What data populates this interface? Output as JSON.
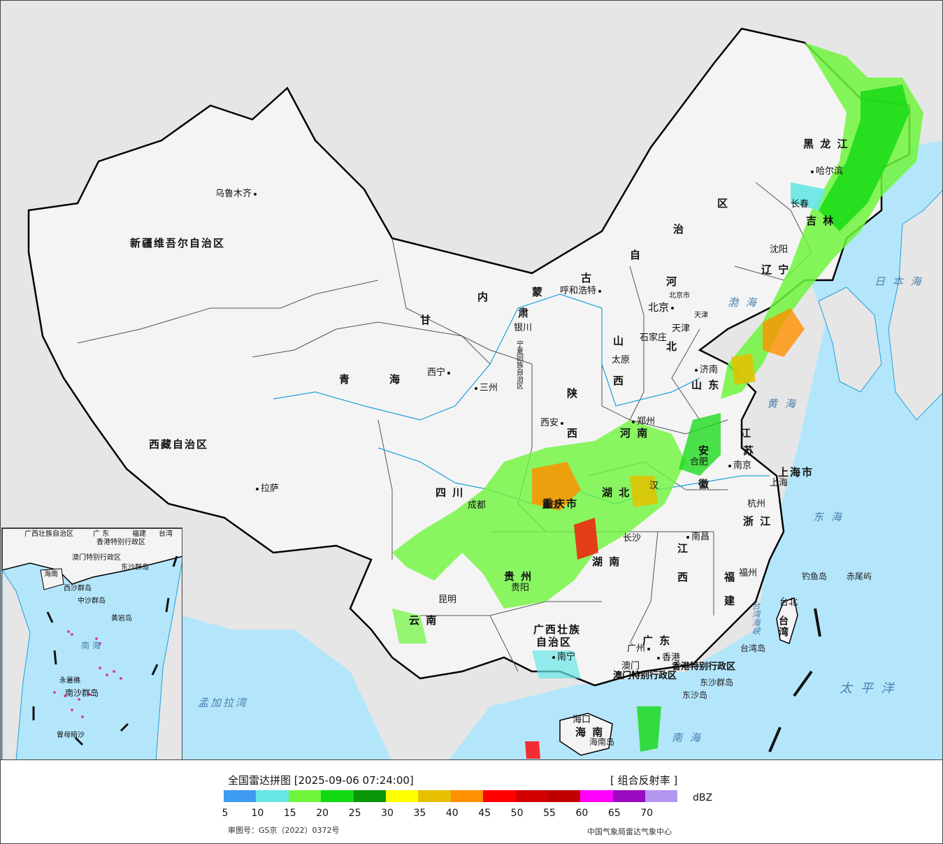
{
  "map": {
    "provinces": [
      {
        "id": "xinjiang",
        "text": "新疆维吾尔自治区"
      },
      {
        "id": "xizang",
        "text": "西藏自治区"
      },
      {
        "id": "qinghai-1",
        "text": "青"
      },
      {
        "id": "qinghai-2",
        "text": "海"
      },
      {
        "id": "gansu-1",
        "text": "甘"
      },
      {
        "id": "gansu-2",
        "text": "肃"
      },
      {
        "id": "neimenggu-1",
        "text": "内"
      },
      {
        "id": "neimenggu-2",
        "text": "蒙"
      },
      {
        "id": "neimenggu-3",
        "text": "古"
      },
      {
        "id": "neimenggu-4",
        "text": "自"
      },
      {
        "id": "neimenggu-5",
        "text": "治"
      },
      {
        "id": "neimenggu-6",
        "text": "区"
      },
      {
        "id": "heilongjiang",
        "text": "黑 龙 江"
      },
      {
        "id": "jilin",
        "text": "吉 林"
      },
      {
        "id": "liaoning",
        "text": "辽 宁"
      },
      {
        "id": "hebei-1",
        "text": "河"
      },
      {
        "id": "hebei-2",
        "text": "北"
      },
      {
        "id": "shanxi-1",
        "text": "山"
      },
      {
        "id": "shanxi-2",
        "text": "西"
      },
      {
        "id": "shaanxi-1",
        "text": "陕"
      },
      {
        "id": "shaanxi-2",
        "text": "西"
      },
      {
        "id": "shandong",
        "text": "山 东"
      },
      {
        "id": "henan",
        "text": "河 南"
      },
      {
        "id": "jiangsu-1",
        "text": "江"
      },
      {
        "id": "jiangsu-2",
        "text": "苏"
      },
      {
        "id": "anhui-1",
        "text": "安"
      },
      {
        "id": "anhui-2",
        "text": "徽"
      },
      {
        "id": "shanghai",
        "text": "上海市"
      },
      {
        "id": "zhejiang",
        "text": "浙 江"
      },
      {
        "id": "hubei",
        "text": "湖 北"
      },
      {
        "id": "sichuan",
        "text": "四 川"
      },
      {
        "id": "chongqing",
        "text": "重庆市"
      },
      {
        "id": "guizhou",
        "text": "贵 州"
      },
      {
        "id": "hunan",
        "text": "湖 南"
      },
      {
        "id": "jiangxi-1",
        "text": "江"
      },
      {
        "id": "jiangxi-2",
        "text": "西"
      },
      {
        "id": "fujian-1",
        "text": "福"
      },
      {
        "id": "fujian-2",
        "text": "建"
      },
      {
        "id": "yunnan",
        "text": "云 南"
      },
      {
        "id": "guangxi-1",
        "text": "广西壮族"
      },
      {
        "id": "guangxi-2",
        "text": "自治区"
      },
      {
        "id": "guangdong",
        "text": "广 东"
      },
      {
        "id": "hainan",
        "text": "海 南"
      },
      {
        "id": "taiwan",
        "text": "台湾"
      },
      {
        "id": "ningxia",
        "text": "宁夏回族自治区"
      },
      {
        "id": "hk",
        "text": "香港特别行政区"
      },
      {
        "id": "macao",
        "text": "澳门特别行政区"
      },
      {
        "id": "beijing-shi",
        "text": "北京市"
      },
      {
        "id": "tianjin-shi",
        "text": "天津"
      }
    ],
    "cities": [
      {
        "id": "urumqi",
        "text": "乌鲁木齐"
      },
      {
        "id": "lhasa",
        "text": "拉萨"
      },
      {
        "id": "xining",
        "text": "西宁"
      },
      {
        "id": "lanzhou",
        "text": "三州"
      },
      {
        "id": "yinchuan",
        "text": "银川"
      },
      {
        "id": "hohhot",
        "text": "呼和浩特"
      },
      {
        "id": "harbin",
        "text": "哈尔滨"
      },
      {
        "id": "changchun",
        "text": "长春"
      },
      {
        "id": "shenyang",
        "text": "沈阳"
      },
      {
        "id": "beijing",
        "text": "北京"
      },
      {
        "id": "tianjin",
        "text": "天津"
      },
      {
        "id": "shijiazhuang",
        "text": "石家庄"
      },
      {
        "id": "taiyuan",
        "text": "太原"
      },
      {
        "id": "jinan",
        "text": "济南"
      },
      {
        "id": "xian",
        "text": "西安"
      },
      {
        "id": "zhengzhou",
        "text": "郑州"
      },
      {
        "id": "hefei",
        "text": "合肥"
      },
      {
        "id": "nanjing",
        "text": "南京"
      },
      {
        "id": "shanghai-city",
        "text": "上海"
      },
      {
        "id": "hangzhou",
        "text": "杭州"
      },
      {
        "id": "wuhan",
        "text": "汉"
      },
      {
        "id": "chengdu",
        "text": "成都"
      },
      {
        "id": "chongqing-city",
        "text": "重庆"
      },
      {
        "id": "guiyang",
        "text": "贵阳"
      },
      {
        "id": "changsha",
        "text": "长沙"
      },
      {
        "id": "nanchang",
        "text": "南昌"
      },
      {
        "id": "fuzhou",
        "text": "福州"
      },
      {
        "id": "kunming",
        "text": "昆明"
      },
      {
        "id": "nanning",
        "text": "南宁"
      },
      {
        "id": "guangzhou",
        "text": "广州"
      },
      {
        "id": "xianggang",
        "text": "香港"
      },
      {
        "id": "aomen",
        "text": "澳门"
      },
      {
        "id": "haikou",
        "text": "海口"
      },
      {
        "id": "taibei",
        "text": "台北"
      }
    ],
    "seas": [
      {
        "id": "bohai",
        "text": "渤 海"
      },
      {
        "id": "huanghai",
        "text": "黄 海"
      },
      {
        "id": "donghai",
        "text": "东 海"
      },
      {
        "id": "nanhai",
        "text": "南 海"
      },
      {
        "id": "taipingyang",
        "text": "太 平 洋"
      },
      {
        "id": "ribenhai",
        "text": "日 本 海"
      },
      {
        "id": "mengjialawan",
        "text": "孟加拉湾"
      },
      {
        "id": "taiwan-strait",
        "text": "台湾海峡"
      }
    ],
    "islands": [
      {
        "id": "diaoyu",
        "text": "钓鱼岛"
      },
      {
        "id": "chiwei",
        "text": "赤尾屿"
      },
      {
        "id": "taiwan-dao",
        "text": "台湾岛"
      },
      {
        "id": "dongsha",
        "text": "东沙群岛"
      },
      {
        "id": "dongsha-dao",
        "text": "东沙岛"
      },
      {
        "id": "hainan-dao",
        "text": "海南岛"
      }
    ],
    "inset": {
      "labels": [
        {
          "id": "inset-guangxi",
          "text": "广西壮族自治区"
        },
        {
          "id": "inset-guangdong",
          "text": "广 东"
        },
        {
          "id": "inset-fujian",
          "text": "福建"
        },
        {
          "id": "inset-taiwan",
          "text": "台湾"
        },
        {
          "id": "inset-hk",
          "text": "香港特别行政区"
        },
        {
          "id": "inset-macao",
          "text": "澳门特别行政区"
        },
        {
          "id": "inset-dongsha",
          "text": "东沙群岛"
        },
        {
          "id": "inset-hainan",
          "text": "海南"
        },
        {
          "id": "inset-xisha",
          "text": "西沙群岛"
        },
        {
          "id": "inset-zhongsha",
          "text": "中沙群岛"
        },
        {
          "id": "inset-huangyan",
          "text": "黄岩岛"
        },
        {
          "id": "inset-nanhai",
          "text": "南 海"
        },
        {
          "id": "inset-yongshu",
          "text": "永暑礁"
        },
        {
          "id": "inset-nansha",
          "text": "南沙群岛"
        },
        {
          "id": "inset-zengmu",
          "text": "曾母暗沙"
        }
      ]
    }
  },
  "legend": {
    "title": "全国雷达拼图 [2025-09-06 07:24:00]",
    "product": "[ 组合反射率 ]",
    "unit": "dBZ",
    "ticks": [
      "5",
      "10",
      "15",
      "20",
      "25",
      "30",
      "35",
      "40",
      "45",
      "50",
      "55",
      "60",
      "65",
      "70"
    ],
    "colors": [
      "#3e9bf0",
      "#68e6e6",
      "#6ef53c",
      "#12d912",
      "#089508",
      "#ffff00",
      "#e6c000",
      "#ff9000",
      "#ff0000",
      "#d20000",
      "#c00000",
      "#ff00ff",
      "#9a0ac0",
      "#b496f0"
    ],
    "approval": "审图号：GS京（2022）0372号",
    "source": "中国气象局雷达气象中心"
  }
}
